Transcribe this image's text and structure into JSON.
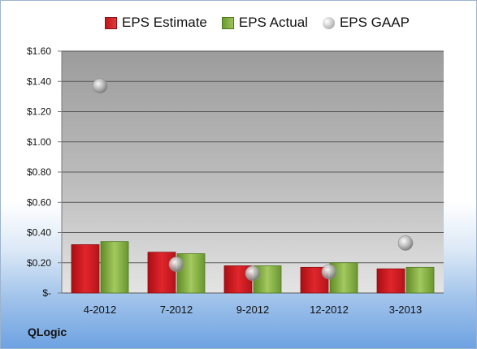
{
  "chart_data": {
    "type": "bar",
    "categories": [
      "4-2012",
      "7-2012",
      "9-2012",
      "12-2012",
      "3-2013"
    ],
    "series": [
      {
        "name": "EPS Estimate",
        "kind": "bar",
        "color": "#c4161c",
        "values": [
          0.32,
          0.27,
          0.18,
          0.17,
          0.16
        ]
      },
      {
        "name": "EPS Actual",
        "kind": "bar",
        "color": "#8ab446",
        "values": [
          0.34,
          0.26,
          0.18,
          0.2,
          0.17
        ]
      },
      {
        "name": "EPS GAAP",
        "kind": "scatter",
        "color": "#a8a8a8",
        "values": [
          1.37,
          0.19,
          0.13,
          0.14,
          0.33
        ]
      }
    ],
    "yticks": [
      "$1.60",
      "$1.40",
      "$1.20",
      "$1.00",
      "$0.80",
      "$0.60",
      "$0.40",
      "$0.20",
      "$-"
    ],
    "ylim": [
      0,
      1.6
    ],
    "grid": true,
    "legend_position": "top"
  },
  "company": "QLogic",
  "legend": {
    "estimate": "EPS Estimate",
    "actual": "EPS Actual",
    "gaap": "EPS GAAP"
  }
}
